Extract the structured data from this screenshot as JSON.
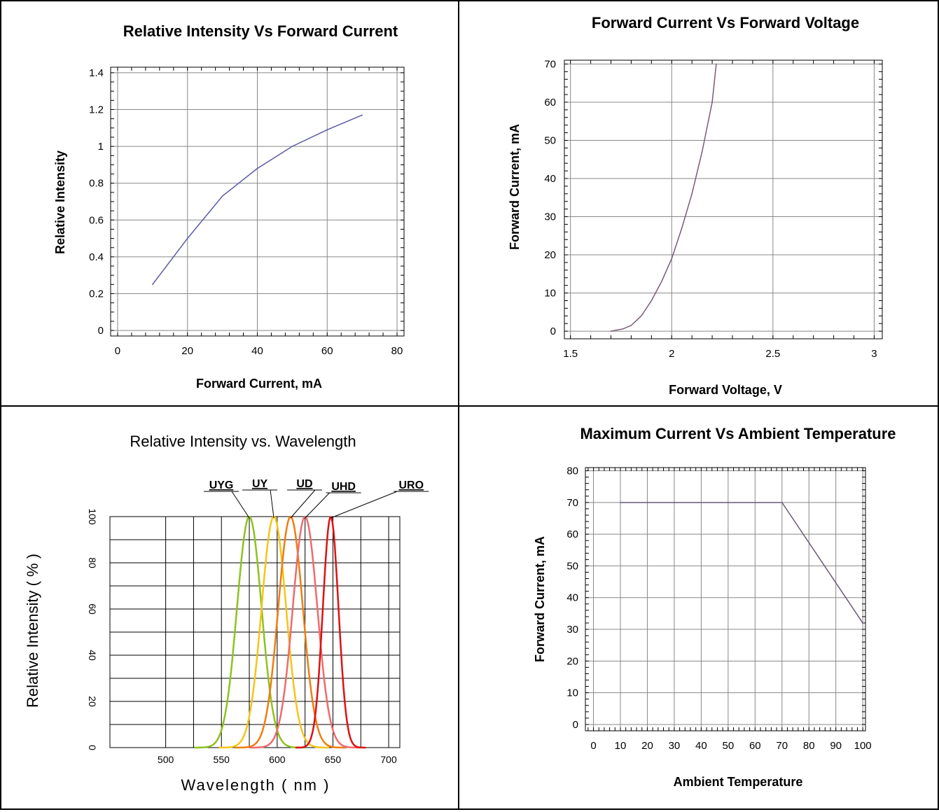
{
  "chart_data": [
    {
      "type": "line",
      "title": "Relative Intensity Vs Forward Current",
      "xlabel": "Forward Current, mA",
      "ylabel": "Relative Intensity",
      "xlim": [
        -2,
        82
      ],
      "ylim": [
        -0.03,
        1.43
      ],
      "xticks": [
        0,
        20,
        40,
        60,
        80
      ],
      "yticks": [
        0,
        0.2,
        0.4,
        0.6,
        0.8,
        1,
        1.2,
        1.4
      ],
      "xtick_labels": [
        "0",
        "20",
        "40",
        "60",
        "80"
      ],
      "ytick_labels": [
        "0",
        "0.2",
        "0.4",
        "0.6",
        "0.8",
        "1",
        "1.2",
        "1.4"
      ],
      "grid": true,
      "line_color": "#5a5aa8",
      "series": [
        {
          "x": [
            10,
            20,
            30,
            40,
            50,
            60,
            70
          ],
          "y": [
            0.25,
            0.5,
            0.73,
            0.88,
            1.0,
            1.09,
            1.17
          ]
        }
      ]
    },
    {
      "type": "line",
      "title": "Forward Current Vs Forward Voltage",
      "xlabel": "Forward Voltage, V",
      "ylabel": "Forward Current, mA",
      "xlim": [
        1.47,
        3.04
      ],
      "ylim": [
        -2,
        71
      ],
      "xticks": [
        1.5,
        2,
        2.5,
        3
      ],
      "yticks": [
        0,
        10,
        20,
        30,
        40,
        50,
        60,
        70
      ],
      "xtick_labels": [
        "1.5",
        "2",
        "2.5",
        "3"
      ],
      "ytick_labels": [
        "0",
        "10",
        "20",
        "30",
        "40",
        "50",
        "60",
        "70"
      ],
      "grid": true,
      "line_color": "#7a5a78",
      "series": [
        {
          "x": [
            1.7,
            1.76,
            1.8,
            1.85,
            1.9,
            1.95,
            2.0,
            2.05,
            2.1,
            2.15,
            2.2,
            2.22
          ],
          "y": [
            0,
            0.6,
            1.5,
            4,
            8,
            13,
            19,
            27,
            36,
            47,
            60,
            70
          ]
        }
      ]
    },
    {
      "type": "line",
      "title": "Relative Intensity vs. Wavelength",
      "xlabel": "Wavelength ( nm )",
      "ylabel": "Relative Intensity ( % )",
      "xlim": [
        450,
        710
      ],
      "ylim": [
        0,
        100
      ],
      "xticks": [
        500,
        550,
        600,
        650,
        700
      ],
      "yticks": [
        0,
        20,
        40,
        60,
        80,
        100
      ],
      "xtick_labels": [
        "500",
        "550",
        "600",
        "650",
        "700"
      ],
      "ytick_labels": [
        "0",
        "20",
        "40",
        "60",
        "80",
        "100"
      ],
      "grid": true,
      "series": [
        {
          "name": "UYG",
          "color": "#8dc21f",
          "peak": 575,
          "width": 11
        },
        {
          "name": "UY",
          "color": "#f5c518",
          "peak": 597,
          "width": 11
        },
        {
          "name": "UD",
          "color": "#ef7d12",
          "peak": 612,
          "width": 11
        },
        {
          "name": "UHD",
          "color": "#ee6b6b",
          "peak": 625,
          "width": 11
        },
        {
          "name": "URO",
          "color": "#dd1111",
          "peak": 648,
          "width": 7
        }
      ]
    },
    {
      "type": "line",
      "title": "Maximum Current Vs Ambient Temperature",
      "xlabel": "Ambient Temperature",
      "ylabel": "Forward Current, mA",
      "xlim": [
        -3,
        101
      ],
      "ylim": [
        -2,
        81
      ],
      "xticks": [
        0,
        10,
        20,
        30,
        40,
        50,
        60,
        70,
        80,
        90,
        100
      ],
      "yticks": [
        0,
        10,
        20,
        30,
        40,
        50,
        60,
        70,
        80
      ],
      "xtick_labels": [
        "0",
        "10",
        "20",
        "30",
        "40",
        "50",
        "60",
        "70",
        "80",
        "90",
        "100"
      ],
      "ytick_labels": [
        "0",
        "10",
        "20",
        "30",
        "40",
        "50",
        "60",
        "70",
        "80"
      ],
      "grid": true,
      "line_color": "#6a5a7a",
      "series": [
        {
          "x": [
            10,
            70,
            100
          ],
          "y": [
            70,
            70,
            32
          ]
        }
      ]
    }
  ]
}
